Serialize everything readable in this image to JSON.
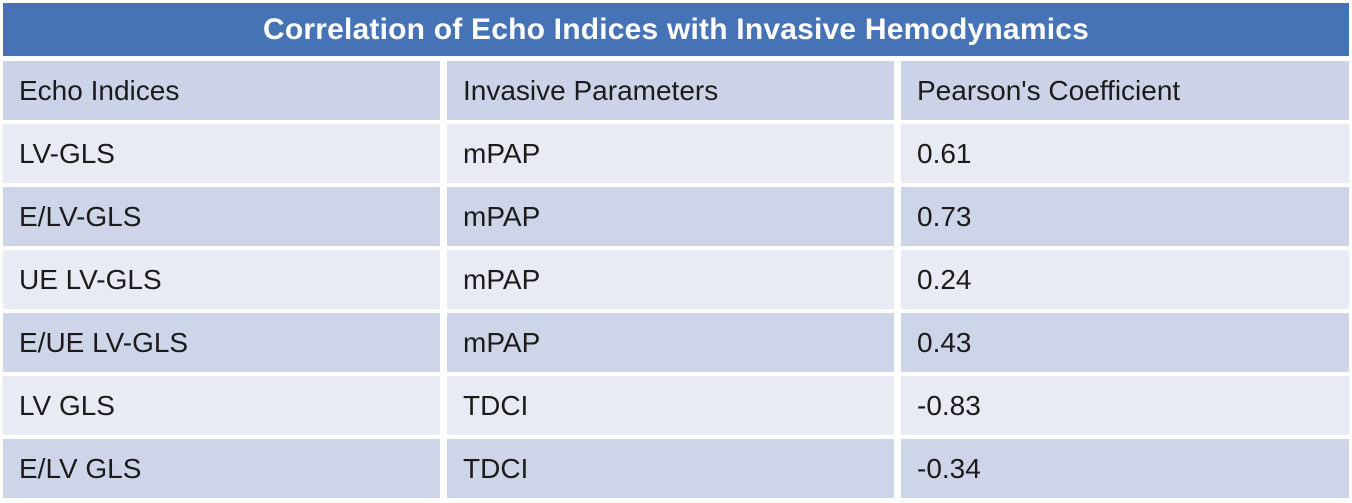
{
  "chart_data": {
    "type": "table",
    "title": "Correlation of Echo Indices with Invasive Hemodynamics",
    "columns": [
      "Echo Indices",
      "Invasive Parameters",
      "Pearson's Coefficient"
    ],
    "rows": [
      [
        "LV-GLS",
        "mPAP",
        "0.61"
      ],
      [
        "E/LV-GLS",
        "mPAP",
        "0.73"
      ],
      [
        "UE LV-GLS",
        "mPAP",
        "0.24"
      ],
      [
        "E/UE LV-GLS",
        "mPAP",
        "0.43"
      ],
      [
        "LV GLS",
        "TDCI",
        "-0.83"
      ],
      [
        "E/LV GLS",
        "TDCI",
        "-0.34"
      ]
    ]
  },
  "colors": {
    "title_bar": "#4673b5",
    "title_text": "#ffffff",
    "header_row": "#ccd3e8",
    "row_light": "#e9ebf4",
    "row_dark": "#cfd5e9",
    "text": "#1b1b1b",
    "gap": "#ffffff"
  }
}
